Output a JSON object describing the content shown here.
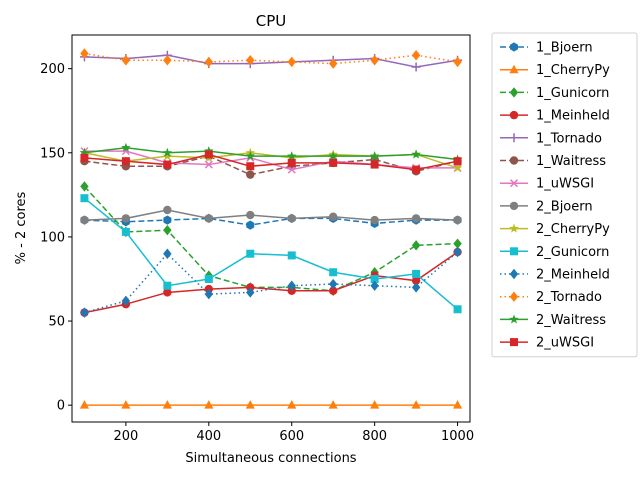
{
  "chart_data": {
    "type": "line",
    "title": "CPU",
    "xlabel": "Simultaneous connections",
    "ylabel": "% - 2 cores",
    "x": [
      100,
      200,
      300,
      400,
      500,
      600,
      700,
      800,
      900,
      1000
    ],
    "xlim": [
      70,
      1030
    ],
    "ylim": [
      -10,
      220
    ],
    "xticks": [
      200,
      400,
      600,
      800,
      1000
    ],
    "yticks": [
      0,
      50,
      100,
      150,
      200
    ],
    "grid": false,
    "legend": "outside-right",
    "series": [
      {
        "name": "1_Bjoern",
        "color": "#1f77b4",
        "dash": "dashed",
        "marker": "hexagon",
        "values": [
          110,
          109,
          110,
          111,
          107,
          111,
          111,
          108,
          110,
          110
        ]
      },
      {
        "name": "1_CherryPy",
        "color": "#ff7f0e",
        "dash": "solid",
        "marker": "triangle",
        "values": [
          0,
          0,
          0,
          0,
          0,
          0,
          0,
          0,
          0,
          0
        ]
      },
      {
        "name": "1_Gunicorn",
        "color": "#2ca02c",
        "dash": "dashed",
        "marker": "diamond",
        "values": [
          130,
          103,
          104,
          77,
          70,
          70,
          68,
          79,
          95,
          96
        ]
      },
      {
        "name": "1_Meinheld",
        "color": "#d62728",
        "dash": "solid",
        "marker": "circle",
        "values": [
          55,
          60,
          67,
          69,
          70,
          68,
          68,
          77,
          74,
          91
        ]
      },
      {
        "name": "1_Tornado",
        "color": "#9467bd",
        "dash": "solid",
        "marker": "plus",
        "values": [
          207,
          206,
          208,
          203,
          203,
          204,
          205,
          206,
          201,
          205
        ]
      },
      {
        "name": "1_Waitress",
        "color": "#8c564b",
        "dash": "dashed",
        "marker": "circle",
        "values": [
          145,
          142,
          142,
          148,
          137,
          142,
          144,
          146,
          139,
          145
        ]
      },
      {
        "name": "1_uWSGI",
        "color": "#e377c2",
        "dash": "solid",
        "marker": "x",
        "values": [
          151,
          151,
          144,
          143,
          147,
          140,
          145,
          143,
          141,
          141
        ]
      },
      {
        "name": "2_Bjoern",
        "color": "#7f7f7f",
        "dash": "solid",
        "marker": "circle",
        "values": [
          110,
          111,
          116,
          111,
          113,
          111,
          112,
          110,
          111,
          110
        ]
      },
      {
        "name": "2_CherryPy",
        "color": "#bcbd22",
        "dash": "solid",
        "marker": "star",
        "values": [
          150,
          145,
          148,
          147,
          150,
          147,
          149,
          148,
          149,
          141
        ]
      },
      {
        "name": "2_Gunicorn",
        "color": "#17becf",
        "dash": "solid",
        "marker": "square",
        "values": [
          123,
          103,
          71,
          75,
          90,
          89,
          79,
          75,
          78,
          57
        ]
      },
      {
        "name": "2_Meinheld",
        "color": "#1f77b4",
        "dash": "dotted",
        "marker": "diamond",
        "values": [
          55,
          62,
          90,
          66,
          67,
          71,
          72,
          71,
          70,
          91
        ]
      },
      {
        "name": "2_Tornado",
        "color": "#ff7f0e",
        "dash": "dotted",
        "marker": "diamond",
        "values": [
          209,
          205,
          205,
          204,
          205,
          204,
          203,
          205,
          208,
          204
        ]
      },
      {
        "name": "2_Waitress",
        "color": "#2ca02c",
        "dash": "solid",
        "marker": "star",
        "values": [
          150,
          153,
          150,
          151,
          148,
          148,
          148,
          148,
          149,
          146
        ]
      },
      {
        "name": "2_uWSGI",
        "color": "#d62728",
        "dash": "solid",
        "marker": "square",
        "values": [
          147,
          145,
          143,
          149,
          142,
          144,
          144,
          143,
          140,
          145
        ]
      }
    ]
  }
}
